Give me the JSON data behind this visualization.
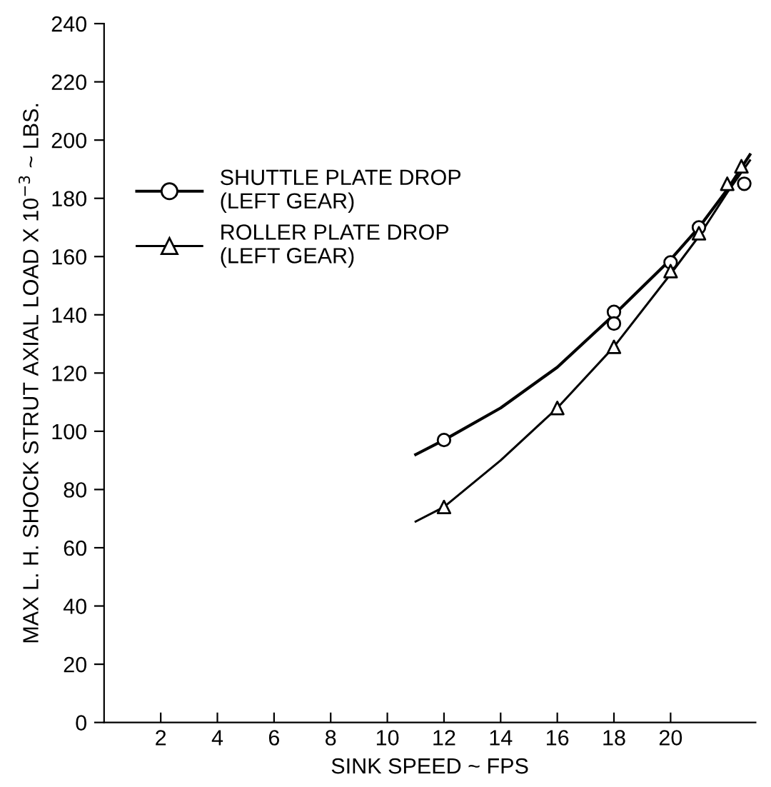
{
  "chart_data": {
    "type": "line",
    "xlabel": "SINK SPEED ~ FPS",
    "ylabel": "MAX L. H. SHOCK STRUT AXIAL LOAD X 10$^{−3}$ ~ LBS.",
    "xlim": [
      0,
      23
    ],
    "ylim": [
      0,
      240
    ],
    "xticks": [
      2,
      4,
      6,
      8,
      10,
      12,
      14,
      16,
      18,
      20
    ],
    "yticks": [
      0,
      20,
      40,
      60,
      80,
      100,
      120,
      140,
      160,
      180,
      200,
      220,
      240
    ],
    "grid": false,
    "legend": "top left",
    "series": [
      {
        "name": "SHUTTLE PLATE DROP\n(LEFT GEAR)",
        "color": "#000000",
        "x": [
          11,
          12,
          14,
          16,
          18,
          20,
          21,
          22,
          22.8
        ],
        "values": [
          92,
          97,
          108,
          122,
          140,
          159,
          170,
          183,
          195
        ]
      },
      {
        "name": "ROLLER PLATE DROP\n(LEFT GEAR)",
        "color": "#000000",
        "x": [
          11,
          12,
          14,
          16,
          18,
          20,
          21,
          22,
          22.8
        ],
        "values": [
          69,
          74,
          90,
          108,
          129,
          154,
          167,
          182,
          193
        ]
      },
      {
        "type": "scatter",
        "color": "#000000",
        "marker": "circle",
        "x": [
          12,
          18,
          18,
          20,
          21,
          22.6
        ],
        "values": [
          97,
          141,
          137,
          158,
          170,
          185
        ]
      },
      {
        "type": "scatter",
        "color": "#000000",
        "marker": "triangle",
        "x": [
          12,
          16,
          18,
          20,
          21,
          22.0,
          22.5
        ],
        "values": [
          74,
          108,
          129,
          155,
          168,
          185,
          191
        ]
      }
    ]
  }
}
